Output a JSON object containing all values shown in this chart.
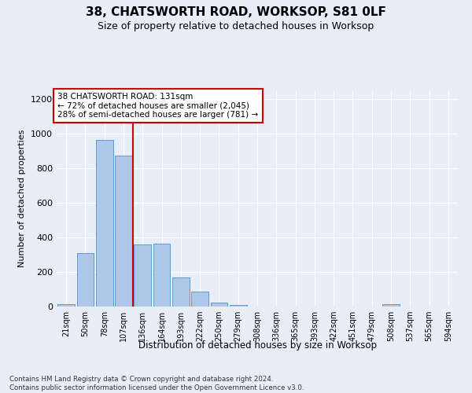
{
  "title": "38, CHATSWORTH ROAD, WORKSOP, S81 0LF",
  "subtitle": "Size of property relative to detached houses in Worksop",
  "xlabel": "Distribution of detached houses by size in Worksop",
  "ylabel": "Number of detached properties",
  "bins": [
    "21sqm",
    "50sqm",
    "78sqm",
    "107sqm",
    "136sqm",
    "164sqm",
    "193sqm",
    "222sqm",
    "250sqm",
    "279sqm",
    "308sqm",
    "336sqm",
    "365sqm",
    "393sqm",
    "422sqm",
    "451sqm",
    "479sqm",
    "508sqm",
    "537sqm",
    "565sqm",
    "594sqm"
  ],
  "values": [
    15,
    310,
    965,
    875,
    360,
    365,
    170,
    85,
    25,
    8,
    2,
    2,
    1,
    0,
    0,
    0,
    0,
    12,
    0,
    0,
    0
  ],
  "bar_color": "#aec6e8",
  "bar_edge_color": "#5b9bd5",
  "vline_bin_index": 4,
  "vline_color": "#cc0000",
  "annotation_text": "38 CHATSWORTH ROAD: 131sqm\n← 72% of detached houses are smaller (2,045)\n28% of semi-detached houses are larger (781) →",
  "annotation_box_color": "#ffffff",
  "annotation_box_edge": "#cc0000",
  "ylim": [
    0,
    1250
  ],
  "yticks": [
    0,
    200,
    400,
    600,
    800,
    1000,
    1200
  ],
  "footer": "Contains HM Land Registry data © Crown copyright and database right 2024.\nContains public sector information licensed under the Open Government Licence v3.0.",
  "bg_color": "#e8eef8",
  "plot_bg_color": "#e8eef8"
}
